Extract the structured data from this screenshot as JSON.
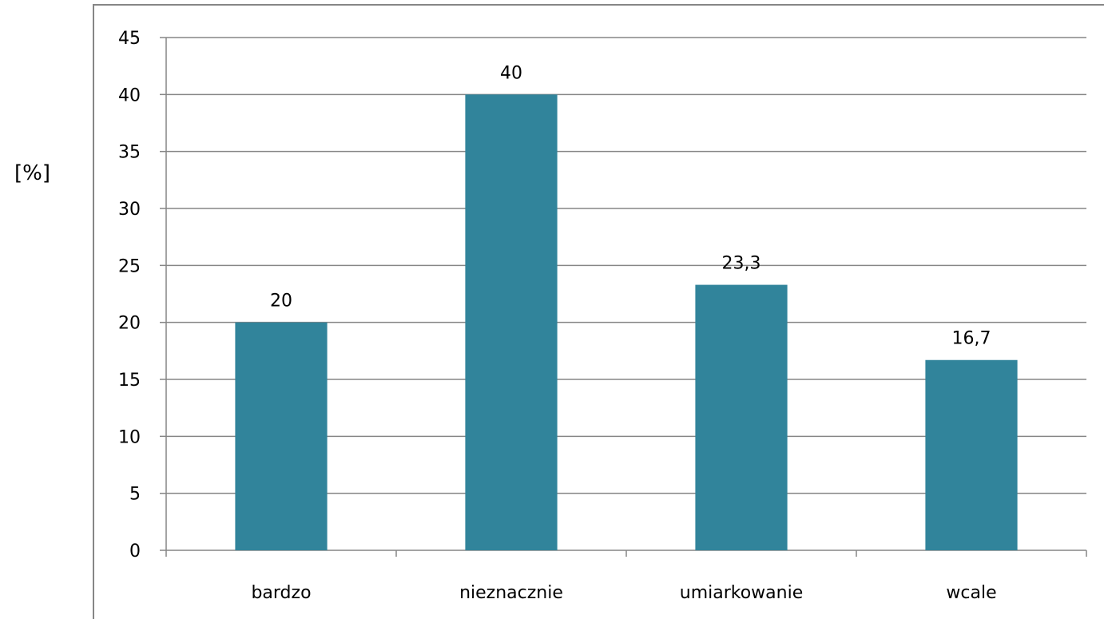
{
  "chart_data": {
    "type": "bar",
    "categories": [
      "bardzo",
      "nieznacznie",
      "umiarkowanie",
      "wcale"
    ],
    "values": [
      20,
      40,
      23.3,
      16.7
    ],
    "data_labels": [
      "20",
      "40",
      "23,3",
      "16,7"
    ],
    "ylabel": "[%]",
    "xlabel": "",
    "title": "",
    "ylim": [
      0,
      45
    ],
    "yticks": [
      0,
      5,
      10,
      15,
      20,
      25,
      30,
      35,
      40,
      45
    ],
    "ytick_labels": [
      "0",
      "5",
      "10",
      "15",
      "20",
      "25",
      "30",
      "35",
      "40",
      "45"
    ],
    "grid": true,
    "legend": "none",
    "bar_color": "#31849b",
    "grid_color": "#868686"
  }
}
